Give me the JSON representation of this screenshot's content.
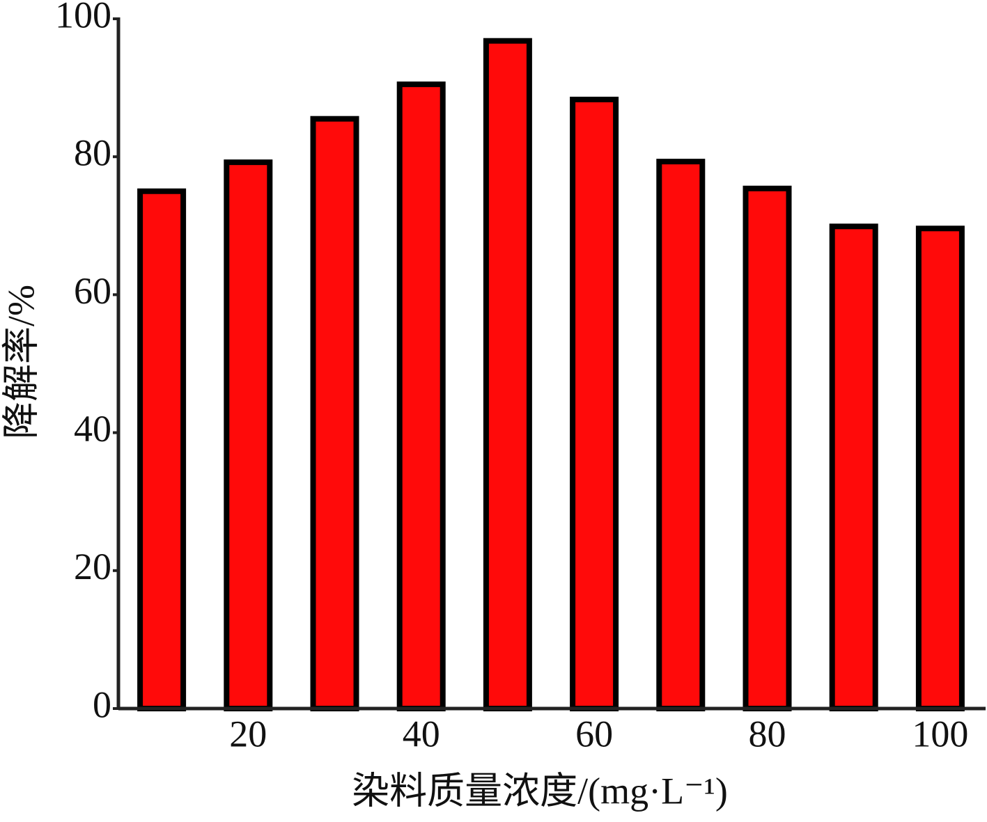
{
  "chart_data": {
    "type": "bar",
    "x_label": "染料质量浓度/(mg·L⁻¹)",
    "y_label": "降解率/%",
    "categories": [
      null,
      "20",
      null,
      "40",
      null,
      "60",
      null,
      "80",
      null,
      "100"
    ],
    "values": [
      75,
      79.2,
      85.5,
      90.5,
      96.8,
      88.3,
      79.3,
      75.4,
      69.9,
      69.6
    ],
    "color": "#ff0a0a",
    "ylim": [
      0,
      100
    ],
    "yticks": [
      0,
      20,
      40,
      60,
      80,
      100
    ],
    "grid": false
  }
}
